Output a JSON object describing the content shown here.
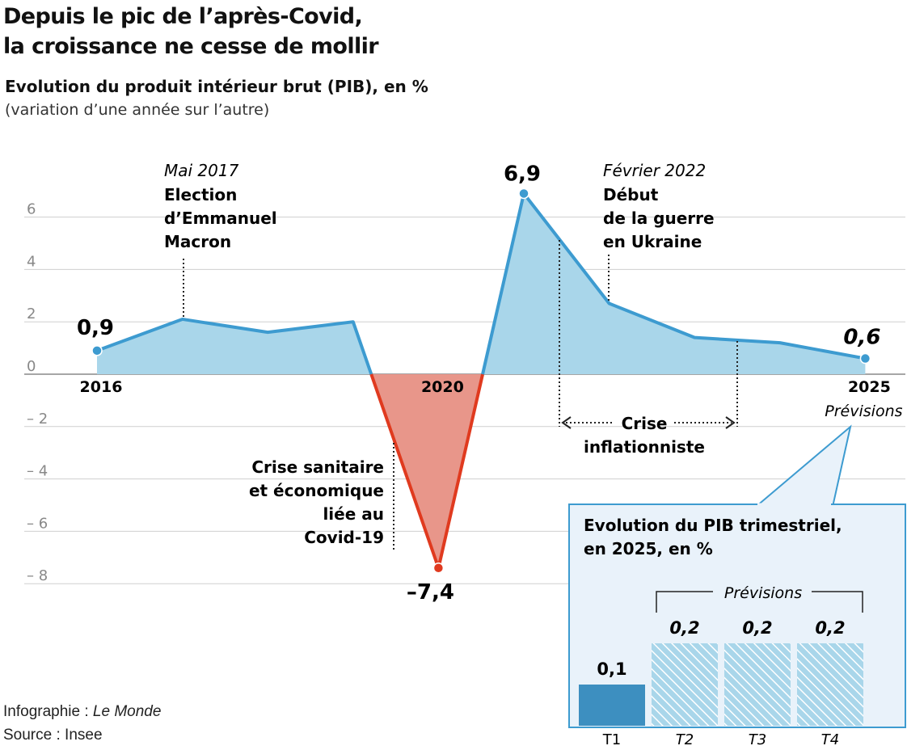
{
  "title_line1": "Depuis le pic de l’après-Covid,",
  "title_line2": "la croissance ne cesse de mollir",
  "subtitle": "Evolution du produit intérieur brut (PIB), en %",
  "subtitle2": "(variation d’une année sur l’autre)",
  "credit_prefix": "Infographie : ",
  "credit_name": "Le Monde",
  "source": "Source : Insee",
  "colors": {
    "line": "#3d9bd0",
    "area": "#a9d6ea",
    "neg_line": "#e03a1f",
    "neg_area": "#e8968a",
    "grid": "#cfcfcf"
  },
  "chart_data": [
    {
      "type": "area",
      "title": "Depuis le pic de l’après-Covid, la croissance ne cesse de mollir",
      "x": [
        2016,
        2017,
        2018,
        2019,
        2020,
        2021,
        2022,
        2023,
        2024,
        2025
      ],
      "y": [
        0.9,
        2.1,
        1.6,
        2.0,
        -7.4,
        6.9,
        2.7,
        1.4,
        1.2,
        0.6
      ],
      "ylim": [
        -8,
        6
      ],
      "yticks": [
        "6",
        "4",
        "2",
        "0",
        "– 2",
        "– 4",
        "– 6",
        "– 8"
      ],
      "ytick_values": [
        6,
        4,
        2,
        0,
        -2,
        -4,
        -6,
        -8
      ],
      "xtick_labels": [
        "2016",
        "2020",
        "2025"
      ],
      "value_labels": {
        "first": "0,9",
        "max": "6,9",
        "min": "–7,4",
        "last": "0,6"
      },
      "forecast_label": "Prévisions",
      "annotations": {
        "macron_date": "Mai 2017",
        "macron_lines": [
          "Election",
          "d’Emmanuel",
          "Macron"
        ],
        "ukraine_date": "Février 2022",
        "ukraine_lines": [
          "Début",
          "de la guerre",
          "en Ukraine"
        ],
        "covid_lines": [
          "Crise sanitaire",
          "et économique",
          "liée au",
          "Covid-19"
        ],
        "inflation_lines": [
          "Crise",
          "inflationniste"
        ]
      },
      "grid": true
    },
    {
      "type": "bar",
      "title_lines": [
        "Evolution du PIB trimestriel,",
        "en 2025, en %"
      ],
      "categories": [
        "T1",
        "T2",
        "T3",
        "T4"
      ],
      "values": [
        0.1,
        0.2,
        0.2,
        0.2
      ],
      "value_labels": [
        "0,1",
        "0,2",
        "0,2",
        "0,2"
      ],
      "forecast": [
        false,
        true,
        true,
        true
      ],
      "forecast_label": "Prévisions"
    }
  ]
}
